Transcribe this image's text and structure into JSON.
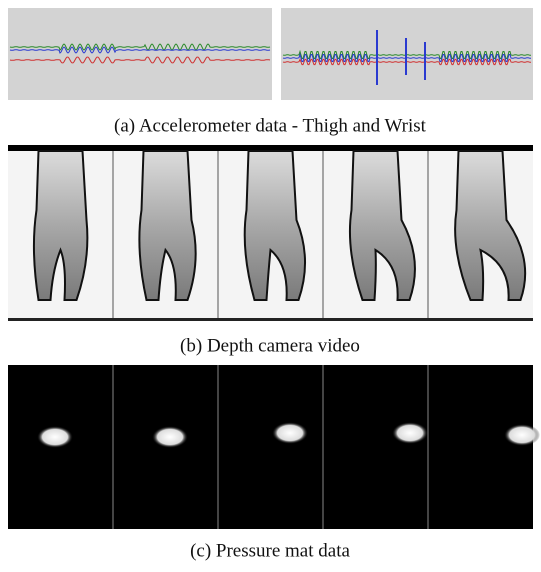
{
  "panels": [
    {
      "caption": "(a) Accelerometer data - Thigh and Wrist"
    },
    {
      "caption": "(b) Depth camera video"
    },
    {
      "caption": "(c) Pressure mat data"
    }
  ]
}
